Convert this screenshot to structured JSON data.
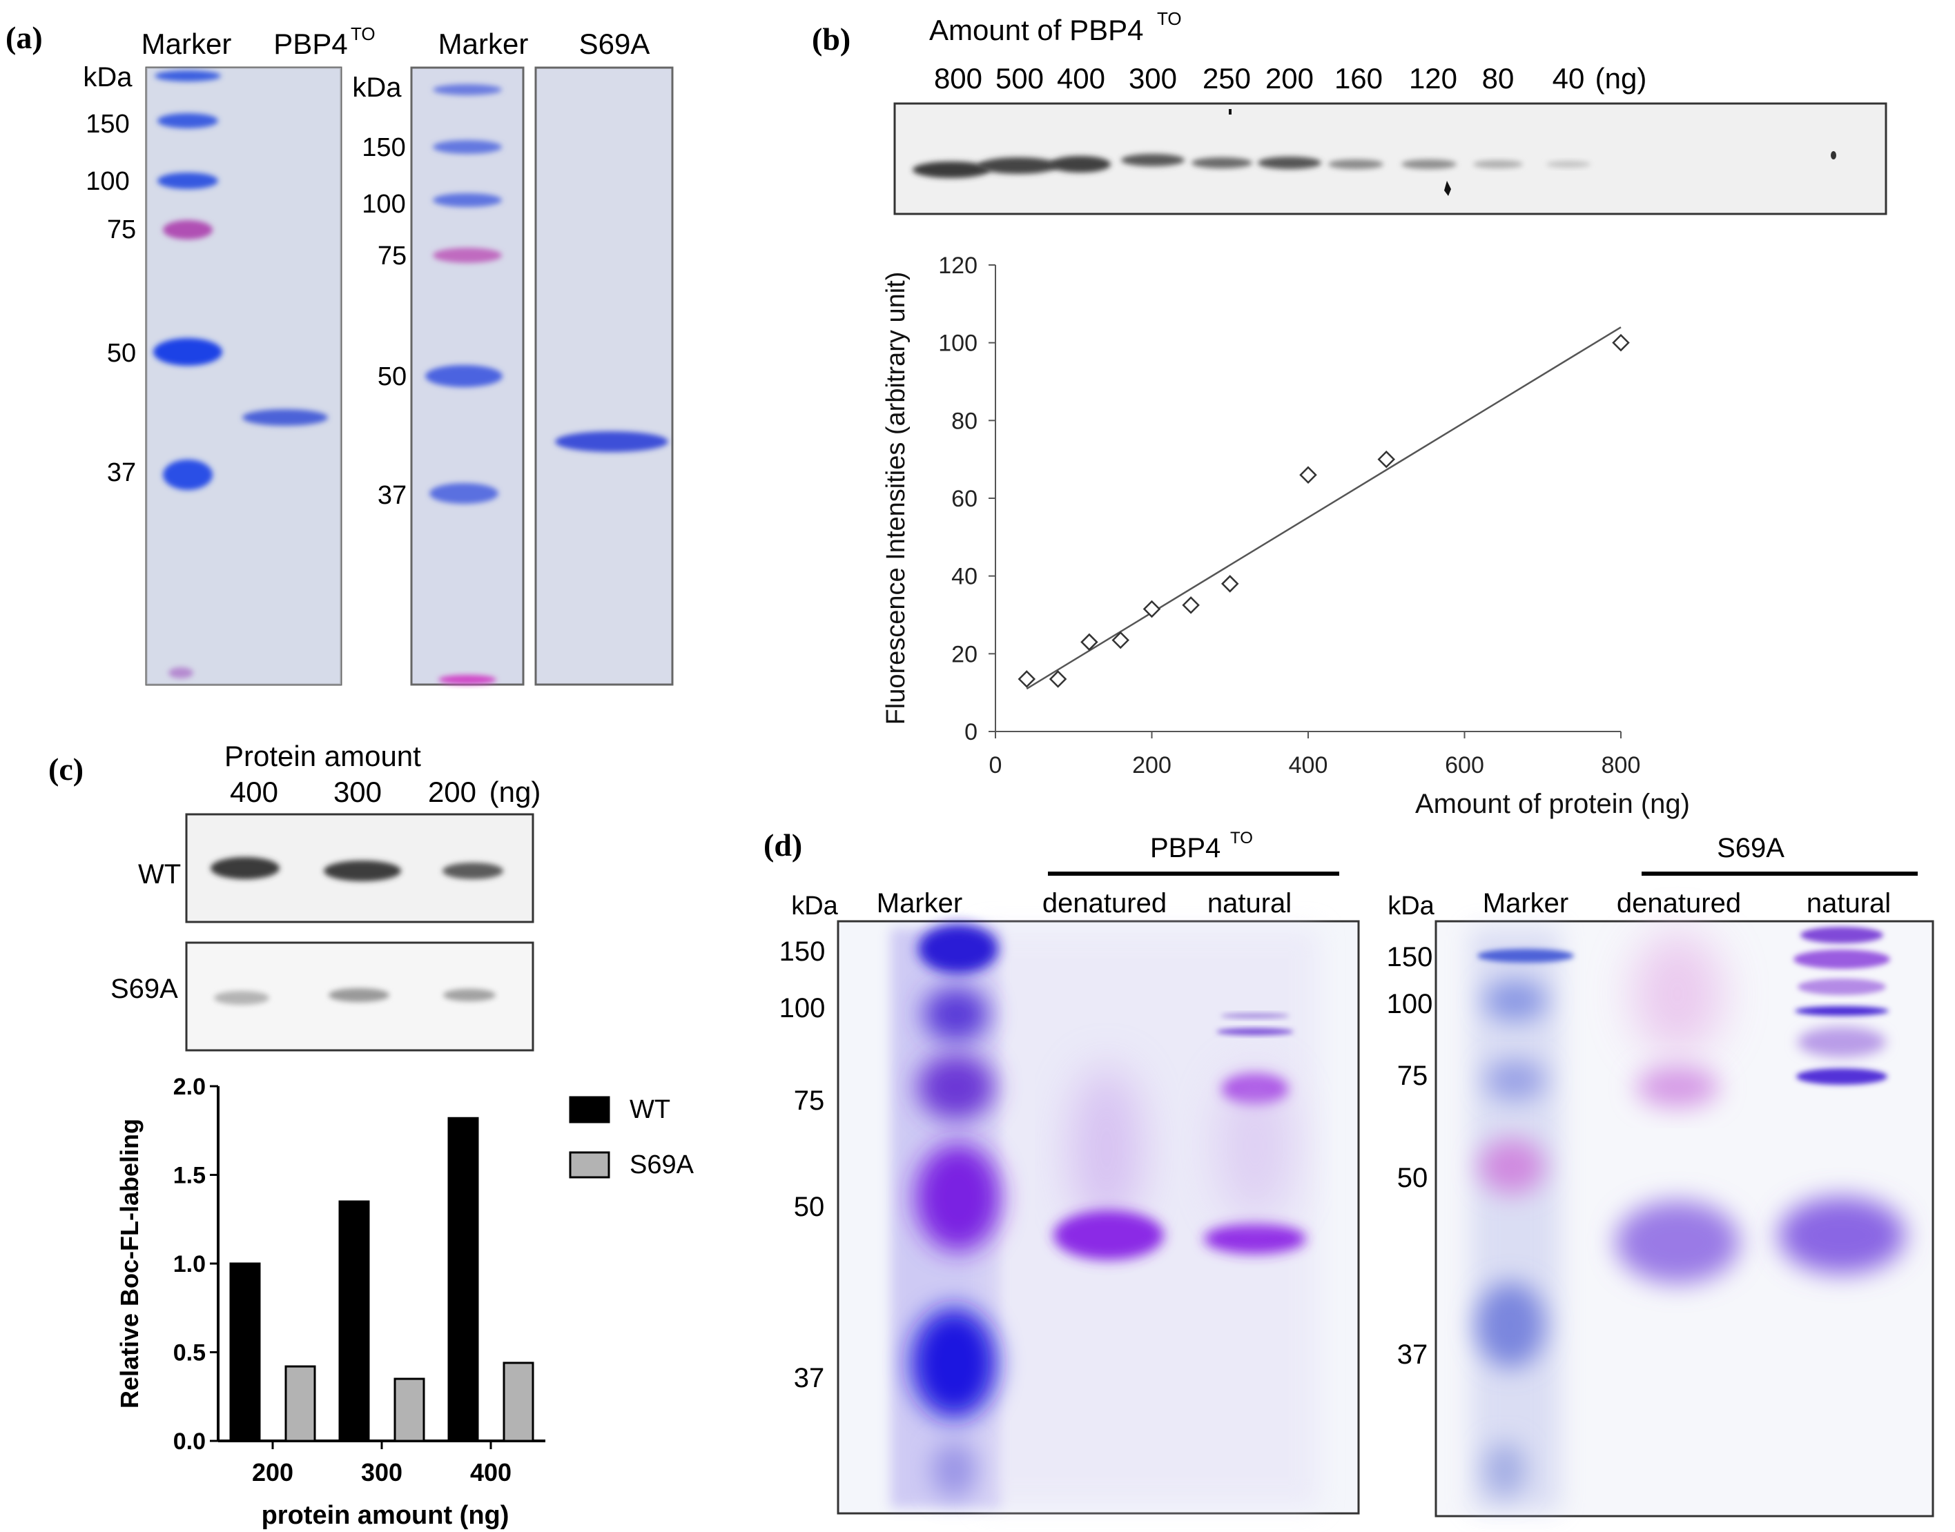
{
  "panels": {
    "a": {
      "label": "(a)",
      "gel1": {
        "lanes": [
          "Marker",
          "PBP4",
          "TO"
        ],
        "unit": "kDa",
        "markers": [
          "150",
          "100",
          "75",
          "50",
          "37"
        ]
      },
      "gel2": {
        "lanes": [
          "Marker",
          "S69A"
        ],
        "unit": "kDa",
        "markers": [
          "150",
          "100",
          "75",
          "50",
          "37"
        ]
      }
    },
    "b": {
      "label": "(b)",
      "title_main": "Amount of PBP4",
      "title_sup": "TO",
      "lane_amounts": [
        "800",
        "500",
        "400",
        "300",
        "250",
        "200",
        "160",
        "120",
        "80",
        "40"
      ],
      "unit": "(ng)"
    },
    "c": {
      "label": "(c)",
      "title": "Protein amount",
      "lane_amounts": [
        "400",
        "300",
        "200"
      ],
      "unit": "(ng)",
      "row_labels": [
        "WT",
        "S69A"
      ]
    },
    "d": {
      "label": "(d)",
      "gel1": {
        "group_main": "PBP4",
        "group_sup": "TO",
        "lanes": [
          "Marker",
          "denatured",
          "natural"
        ],
        "unit": "kDa",
        "markers": [
          "150",
          "100",
          "75",
          "50",
          "37"
        ]
      },
      "gel2": {
        "group": "S69A",
        "lanes": [
          "Marker",
          "denatured",
          "natural"
        ],
        "unit": "kDa",
        "markers": [
          "150",
          "100",
          "75",
          "50",
          "37"
        ]
      }
    }
  },
  "chart_data": [
    {
      "id": "b",
      "type": "scatter",
      "xlabel": "Amount of protein (ng)",
      "ylabel": "Fluorescence Intensities (arbitrary unit)",
      "xlim": [
        0,
        800
      ],
      "ylim": [
        0,
        120
      ],
      "xticks": [
        0,
        200,
        400,
        600,
        800
      ],
      "yticks": [
        0,
        20,
        40,
        60,
        80,
        100,
        120
      ],
      "x": [
        40,
        80,
        120,
        160,
        200,
        250,
        300,
        400,
        500,
        800
      ],
      "y": [
        13.5,
        13.5,
        23,
        23.5,
        31.5,
        32.5,
        38,
        66,
        70,
        100
      ],
      "trendline": {
        "x": [
          40,
          800
        ],
        "y": [
          11,
          104
        ]
      }
    },
    {
      "id": "c",
      "type": "bar",
      "xlabel": "protein amount (ng)",
      "ylabel": "Relative Boc-FL-labeling",
      "categories": [
        "200",
        "300",
        "400"
      ],
      "ylim": [
        0,
        2.0
      ],
      "yticks": [
        "0.0",
        "0.5",
        "1.0",
        "1.5",
        "2.0"
      ],
      "legend": "top-right",
      "series": [
        {
          "name": "WT",
          "color": "#000000",
          "values": [
            1.0,
            1.35,
            1.82
          ]
        },
        {
          "name": "S69A",
          "color": "#b3b3b3",
          "values": [
            0.42,
            0.35,
            0.44
          ]
        }
      ]
    }
  ]
}
